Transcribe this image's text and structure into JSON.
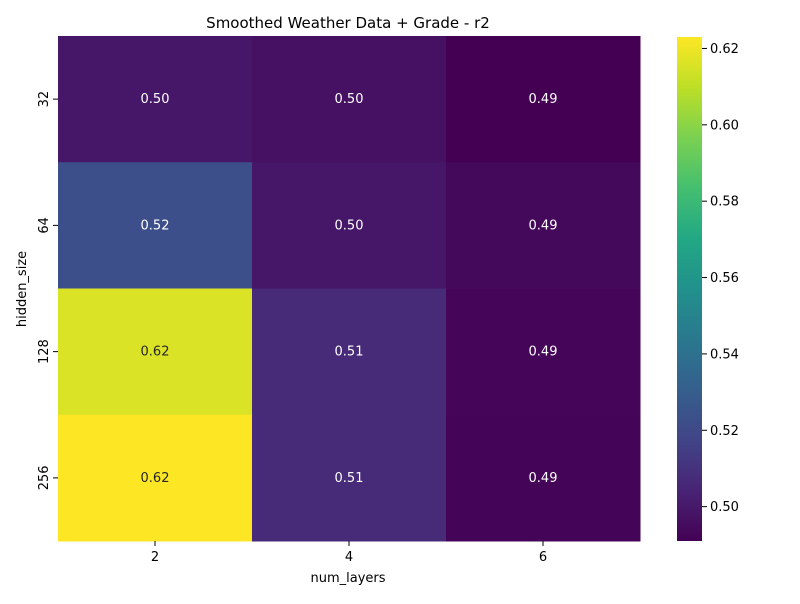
{
  "chart_data": {
    "type": "heatmap",
    "title": "Smoothed Weather Data + Grade - r2",
    "xlabel": "num_layers",
    "ylabel": "hidden_size",
    "x": [
      "2",
      "4",
      "6"
    ],
    "y": [
      "32",
      "64",
      "128",
      "256"
    ],
    "values": [
      [
        0.499,
        0.497,
        0.491
      ],
      [
        0.523,
        0.499,
        0.494
      ],
      [
        0.616,
        0.507,
        0.493
      ],
      [
        0.623,
        0.507,
        0.492
      ]
    ],
    "cell_labels": [
      [
        "0.50",
        "0.50",
        "0.49"
      ],
      [
        "0.52",
        "0.50",
        "0.49"
      ],
      [
        "0.62",
        "0.51",
        "0.49"
      ],
      [
        "0.62",
        "0.51",
        "0.49"
      ]
    ],
    "colormap": "viridis",
    "colorbar": {
      "range": [
        0.491,
        0.623
      ],
      "ticks": [
        0.5,
        0.52,
        0.54,
        0.56,
        0.58,
        0.6,
        0.62
      ],
      "tick_labels": [
        "0.50",
        "0.52",
        "0.54",
        "0.56",
        "0.58",
        "0.60",
        "0.62"
      ]
    }
  }
}
